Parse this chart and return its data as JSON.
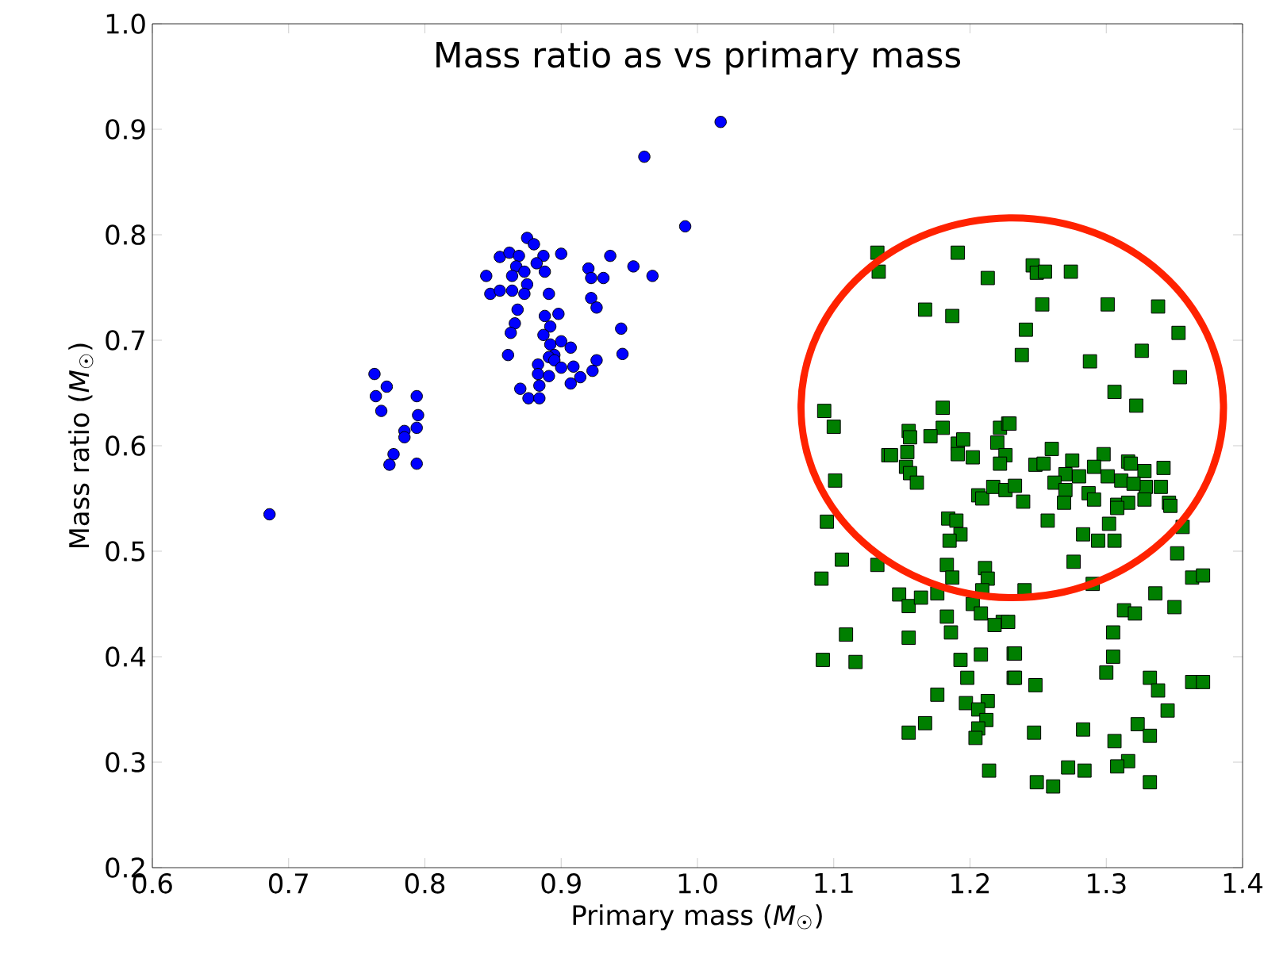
{
  "chart_data": {
    "type": "scatter",
    "title": "Mass ratio as vs primary mass",
    "xlabel": "Primary mass (*M*$_{☉}$)",
    "ylabel": "Mass ratio (*M*$_{☉}$)",
    "xlim": [
      0.6,
      1.4
    ],
    "ylim": [
      0.2,
      1.0
    ],
    "xticks": [
      0.6,
      0.7,
      0.8,
      0.9,
      {
        "value": 1.0,
        "label": "1.0"
      },
      1.1,
      1.2,
      1.3,
      1.4
    ],
    "yticks": [
      0.2,
      0.3,
      0.4,
      0.5,
      0.6,
      0.7,
      0.8,
      0.9,
      {
        "value": 1.0,
        "label": "1.0"
      }
    ],
    "series": [
      {
        "color": "#0000ff",
        "marker": "circle",
        "x": [
          1.017,
          0.961,
          0.991,
          0.686,
          0.763,
          0.772,
          0.764,
          0.768,
          0.794,
          0.795,
          0.794,
          0.785,
          0.785,
          0.777,
          0.774,
          0.794,
          0.875,
          0.88,
          0.855,
          0.862,
          0.869,
          0.887,
          0.9,
          0.882,
          0.867,
          0.888,
          0.845,
          0.864,
          0.873,
          0.875,
          0.848,
          0.855,
          0.864,
          0.873,
          0.891,
          0.92,
          0.936,
          0.922,
          0.931,
          0.953,
          0.967,
          0.922,
          0.926,
          0.868,
          0.888,
          0.898,
          0.866,
          0.892,
          0.863,
          0.887,
          0.944,
          0.9,
          0.907,
          0.892,
          0.895,
          0.891,
          0.895,
          0.861,
          0.945,
          0.926,
          0.883,
          0.9,
          0.909,
          0.923,
          0.883,
          0.891,
          0.914,
          0.907,
          0.884,
          0.87,
          0.876,
          0.884
        ],
        "values": [
          0.907,
          0.874,
          0.808,
          0.535,
          0.668,
          0.656,
          0.647,
          0.633,
          0.647,
          0.629,
          0.617,
          0.614,
          0.608,
          0.592,
          0.582,
          0.583,
          0.797,
          0.791,
          0.779,
          0.783,
          0.78,
          0.78,
          0.782,
          0.773,
          0.77,
          0.765,
          0.761,
          0.761,
          0.765,
          0.753,
          0.744,
          0.747,
          0.747,
          0.744,
          0.744,
          0.768,
          0.78,
          0.759,
          0.759,
          0.77,
          0.761,
          0.74,
          0.731,
          0.729,
          0.723,
          0.725,
          0.716,
          0.713,
          0.707,
          0.705,
          0.711,
          0.699,
          0.693,
          0.696,
          0.686,
          0.684,
          0.681,
          0.686,
          0.687,
          0.681,
          0.677,
          0.674,
          0.675,
          0.671,
          0.668,
          0.666,
          0.665,
          0.659,
          0.657,
          0.654,
          0.645,
          0.645
        ]
      },
      {
        "color": "#007f00",
        "marker": "square",
        "x": [
          1.132,
          1.133,
          1.191,
          1.213,
          1.167,
          1.187,
          1.093,
          1.1,
          1.18,
          1.18,
          1.155,
          1.156,
          1.171,
          1.14,
          1.142,
          1.154,
          1.153,
          1.156,
          1.161,
          1.191,
          1.195,
          1.191,
          1.202,
          1.101,
          1.222,
          1.228,
          1.22,
          1.226,
          1.222,
          1.206,
          1.209,
          1.217,
          1.226,
          1.246,
          1.249,
          1.255,
          1.274,
          1.253,
          1.301,
          1.338,
          1.241,
          1.353,
          1.238,
          1.288,
          1.326,
          1.354,
          1.306,
          1.322,
          1.229,
          1.26,
          1.248,
          1.254,
          1.275,
          1.27,
          1.28,
          1.298,
          1.291,
          1.301,
          1.316,
          1.318,
          1.311,
          1.328,
          1.342,
          1.34,
          1.329,
          1.32,
          1.262,
          1.233,
          1.27,
          1.287,
          1.239,
          1.269,
          1.291,
          1.308,
          1.328,
          1.346,
          1.316,
          1.095,
          1.184,
          1.19,
          1.193,
          1.185,
          1.106,
          1.132,
          1.091,
          1.183,
          1.187,
          1.211,
          1.213,
          1.209,
          1.148,
          1.155,
          1.164,
          1.176,
          1.202,
          1.208,
          1.183,
          1.186,
          1.224,
          1.218,
          1.109,
          1.155,
          1.092,
          1.116,
          1.193,
          1.208,
          1.232,
          1.232,
          1.198,
          1.176,
          1.197,
          1.213,
          1.206,
          1.212,
          1.206,
          1.204,
          1.167,
          1.155,
          1.214,
          1.257,
          1.283,
          1.294,
          1.306,
          1.302,
          1.308,
          1.347,
          1.356,
          1.352,
          1.276,
          1.24,
          1.29,
          1.363,
          1.336,
          1.35,
          1.313,
          1.321,
          1.228,
          1.305,
          1.233,
          1.305,
          1.3,
          1.233,
          1.248,
          1.332,
          1.338,
          1.363,
          1.345,
          1.247,
          1.283,
          1.306,
          1.323,
          1.332,
          1.316,
          1.308,
          1.272,
          1.284,
          1.249,
          1.261,
          1.332,
          1.371,
          1.371
        ],
        "values": [
          0.783,
          0.765,
          0.783,
          0.759,
          0.729,
          0.723,
          0.633,
          0.618,
          0.636,
          0.617,
          0.614,
          0.608,
          0.609,
          0.591,
          0.591,
          0.594,
          0.58,
          0.574,
          0.565,
          0.602,
          0.606,
          0.592,
          0.589,
          0.567,
          0.617,
          0.621,
          0.603,
          0.591,
          0.583,
          0.553,
          0.55,
          0.561,
          0.558,
          0.771,
          0.764,
          0.765,
          0.765,
          0.734,
          0.734,
          0.732,
          0.71,
          0.707,
          0.686,
          0.68,
          0.69,
          0.665,
          0.651,
          0.638,
          0.621,
          0.597,
          0.582,
          0.583,
          0.586,
          0.573,
          0.571,
          0.592,
          0.58,
          0.571,
          0.585,
          0.583,
          0.567,
          0.576,
          0.579,
          0.561,
          0.561,
          0.564,
          0.565,
          0.562,
          0.558,
          0.555,
          0.547,
          0.546,
          0.549,
          0.544,
          0.549,
          0.546,
          0.546,
          0.528,
          0.531,
          0.529,
          0.516,
          0.51,
          0.492,
          0.487,
          0.474,
          0.487,
          0.475,
          0.484,
          0.474,
          0.463,
          0.459,
          0.448,
          0.456,
          0.46,
          0.45,
          0.441,
          0.438,
          0.423,
          0.433,
          0.43,
          0.421,
          0.418,
          0.397,
          0.395,
          0.397,
          0.402,
          0.403,
          0.38,
          0.38,
          0.364,
          0.356,
          0.358,
          0.35,
          0.34,
          0.332,
          0.323,
          0.337,
          0.328,
          0.292,
          0.529,
          0.516,
          0.51,
          0.51,
          0.526,
          0.541,
          0.543,
          0.523,
          0.498,
          0.49,
          0.463,
          0.469,
          0.475,
          0.46,
          0.447,
          0.444,
          0.441,
          0.433,
          0.423,
          0.403,
          0.4,
          0.385,
          0.38,
          0.373,
          0.38,
          0.368,
          0.376,
          0.349,
          0.328,
          0.331,
          0.32,
          0.336,
          0.325,
          0.301,
          0.296,
          0.295,
          0.292,
          0.281,
          0.277,
          0.281,
          0.376,
          0.477
        ]
      }
    ]
  }
}
